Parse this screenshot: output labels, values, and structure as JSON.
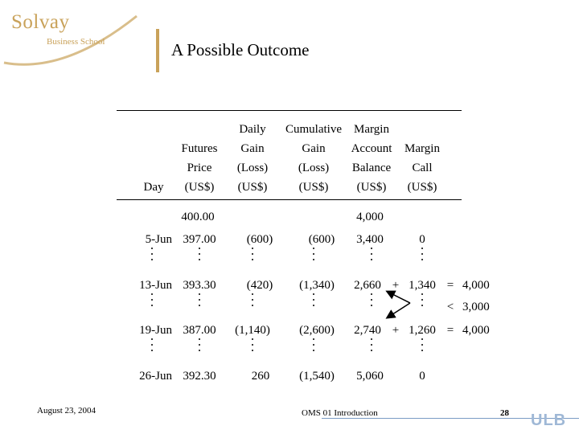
{
  "logo": {
    "name": "Solvay",
    "subtitle": "Business School"
  },
  "title": "A Possible Outcome",
  "headers": {
    "day": [
      "Day"
    ],
    "futures": [
      "Futures",
      "Price",
      "(US$)"
    ],
    "daily": [
      "Daily",
      "Gain",
      "(Loss)",
      "(US$)"
    ],
    "cumulative": [
      "Cumulative",
      "Gain",
      "(Loss)",
      "(US$)"
    ],
    "margin_account": [
      "Margin",
      "Account",
      "Balance",
      "(US$)"
    ],
    "margin_call": [
      "Margin",
      "Call",
      "(US$)"
    ]
  },
  "rows": [
    {
      "day": "",
      "price": "400.00",
      "daily": "",
      "cum": "",
      "balance": "4,000",
      "call": ""
    },
    {
      "day": "5-Jun",
      "price": "397.00",
      "daily": "(600)",
      "cum": "(600)",
      "balance": "3,400",
      "call": "0"
    },
    {
      "day": "13-Jun",
      "price": "393.30",
      "daily": "(420)",
      "cum": "(1,340)",
      "balance": "2,660",
      "call": "1,340"
    },
    {
      "day": "19-Jun",
      "price": "387.00",
      "daily": "(1,140)",
      "cum": "(2,600)",
      "balance": "2,740",
      "call": "1,260"
    },
    {
      "day": "26-Jun",
      "price": "392.30",
      "daily": "260",
      "cum": "(1,540)",
      "balance": "5,060",
      "call": "0"
    }
  ],
  "annotations": {
    "plus1": "+",
    "eq1": "=",
    "total1": "4,000",
    "lt": "<",
    "maint": "3,000",
    "plus2": "+",
    "eq2": "=",
    "total2": "4,000"
  },
  "footer": {
    "date": "August 23, 2004",
    "course": "OMS 01 Introduction",
    "page": "28",
    "ulb": "ULB"
  },
  "colors": {
    "brand_gold": "#c9a25a",
    "footer_blue": "#7a9cc4"
  }
}
